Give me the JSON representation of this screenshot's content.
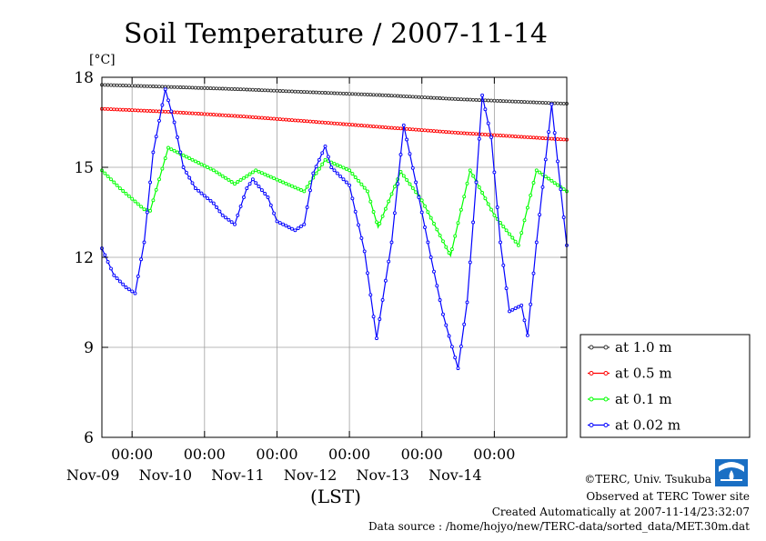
{
  "chart_data": {
    "type": "line",
    "title": "Soil Temperature / 2007-11-14",
    "unit": "[°C]",
    "xlabel": "(LST)",
    "x_start": "2007-11-08T14:00",
    "x_end": "2007-11-14T24:00",
    "x_tick_time_label": "00:00",
    "x_ticks": [
      "2007-11-09T00:00",
      "2007-11-10T00:00",
      "2007-11-11T00:00",
      "2007-11-12T00:00",
      "2007-11-13T00:00",
      "2007-11-14T00:00"
    ],
    "x_tick_date_labels": [
      "Nov-09",
      "Nov-10",
      "Nov-11",
      "Nov-12",
      "Nov-13",
      "Nov-14"
    ],
    "ylim": [
      6,
      18
    ],
    "y_ticks": [
      6,
      9,
      12,
      15,
      18
    ],
    "grid": true,
    "legend_position": "right",
    "series": [
      {
        "name": "at 1.0 m",
        "color": "#333333",
        "points": [
          [
            "2007-11-08T14:00",
            17.75
          ],
          [
            "2007-11-09T12:00",
            17.68
          ],
          [
            "2007-11-10T12:00",
            17.6
          ],
          [
            "2007-11-11T12:00",
            17.5
          ],
          [
            "2007-11-12T12:00",
            17.4
          ],
          [
            "2007-11-13T12:00",
            17.27
          ],
          [
            "2007-11-14T24:00",
            17.12
          ]
        ]
      },
      {
        "name": "at 0.5 m",
        "color": "#ff0000",
        "points": [
          [
            "2007-11-08T14:00",
            16.95
          ],
          [
            "2007-11-09T12:00",
            16.85
          ],
          [
            "2007-11-10T12:00",
            16.7
          ],
          [
            "2007-11-11T12:00",
            16.52
          ],
          [
            "2007-11-12T12:00",
            16.33
          ],
          [
            "2007-11-13T12:00",
            16.15
          ],
          [
            "2007-11-14T24:00",
            15.92
          ]
        ]
      },
      {
        "name": "at 0.1 m",
        "color": "#00ff00",
        "points": [
          [
            "2007-11-08T14:00",
            14.9
          ],
          [
            "2007-11-08T20:00",
            14.3
          ],
          [
            "2007-11-09T04:00",
            13.6
          ],
          [
            "2007-11-09T06:00",
            13.55
          ],
          [
            "2007-11-09T12:00",
            15.65
          ],
          [
            "2007-11-09T18:00",
            15.35
          ],
          [
            "2007-11-10T03:00",
            14.9
          ],
          [
            "2007-11-10T10:00",
            14.45
          ],
          [
            "2007-11-10T17:00",
            14.9
          ],
          [
            "2007-11-11T02:00",
            14.5
          ],
          [
            "2007-11-11T09:00",
            14.2
          ],
          [
            "2007-11-11T16:00",
            15.25
          ],
          [
            "2007-11-12T00:00",
            14.9
          ],
          [
            "2007-11-12T06:00",
            14.2
          ],
          [
            "2007-11-12T09:30",
            13.0
          ],
          [
            "2007-11-12T17:00",
            14.85
          ],
          [
            "2007-11-13T00:00",
            13.9
          ],
          [
            "2007-11-13T09:30",
            12.05
          ],
          [
            "2007-11-13T16:00",
            14.9
          ],
          [
            "2007-11-14T00:00",
            13.4
          ],
          [
            "2007-11-14T08:00",
            12.4
          ],
          [
            "2007-11-14T14:00",
            14.9
          ],
          [
            "2007-11-14T24:00",
            14.2
          ]
        ]
      },
      {
        "name": "at 0.02 m",
        "color": "#0000ff",
        "points": [
          [
            "2007-11-08T14:00",
            12.3
          ],
          [
            "2007-11-08T18:00",
            11.4
          ],
          [
            "2007-11-08T22:00",
            11.0
          ],
          [
            "2007-11-09T01:00",
            10.8
          ],
          [
            "2007-11-09T04:00",
            12.5
          ],
          [
            "2007-11-09T07:00",
            15.5
          ],
          [
            "2007-11-09T11:00",
            17.6
          ],
          [
            "2007-11-09T14:00",
            16.5
          ],
          [
            "2007-11-09T17:00",
            15.0
          ],
          [
            "2007-11-09T21:00",
            14.3
          ],
          [
            "2007-11-10T03:00",
            13.8
          ],
          [
            "2007-11-10T06:00",
            13.4
          ],
          [
            "2007-11-10T10:00",
            13.1
          ],
          [
            "2007-11-10T14:00",
            14.3
          ],
          [
            "2007-11-10T16:00",
            14.6
          ],
          [
            "2007-11-10T21:00",
            14.0
          ],
          [
            "2007-11-11T00:00",
            13.2
          ],
          [
            "2007-11-11T06:00",
            12.9
          ],
          [
            "2007-11-11T09:00",
            13.1
          ],
          [
            "2007-11-11T12:00",
            14.8
          ],
          [
            "2007-11-11T16:00",
            15.7
          ],
          [
            "2007-11-11T18:00",
            15.0
          ],
          [
            "2007-11-12T00:00",
            14.4
          ],
          [
            "2007-11-12T05:00",
            12.2
          ],
          [
            "2007-11-12T09:00",
            9.3
          ],
          [
            "2007-11-12T14:00",
            12.5
          ],
          [
            "2007-11-12T18:00",
            16.4
          ],
          [
            "2007-11-12T22:00",
            14.5
          ],
          [
            "2007-11-13T03:00",
            12.0
          ],
          [
            "2007-11-13T07:00",
            10.1
          ],
          [
            "2007-11-13T12:00",
            8.3
          ],
          [
            "2007-11-13T15:00",
            10.5
          ],
          [
            "2007-11-13T18:00",
            14.5
          ],
          [
            "2007-11-13T20:00",
            17.4
          ],
          [
            "2007-11-13T23:00",
            16.0
          ],
          [
            "2007-11-14T02:00",
            12.5
          ],
          [
            "2007-11-14T05:00",
            10.2
          ],
          [
            "2007-11-14T09:00",
            10.4
          ],
          [
            "2007-11-14T11:00",
            9.4
          ],
          [
            "2007-11-14T14:00",
            12.5
          ],
          [
            "2007-11-14T19:00",
            17.1
          ],
          [
            "2007-11-14T21:00",
            15.2
          ],
          [
            "2007-11-14T24:00",
            12.4
          ]
        ]
      }
    ]
  },
  "credits": {
    "copyright": "©TERC, Univ. Tsukuba",
    "site": "Observed at TERC Tower site",
    "created": "Created Automatically at 2007-11-14/23:32:07",
    "source": "Data source : /home/hojyo/new/TERC-data/sorted_data/MET.30m.dat"
  },
  "logo": {
    "text": "TERC",
    "color": "#1a6fc4"
  }
}
